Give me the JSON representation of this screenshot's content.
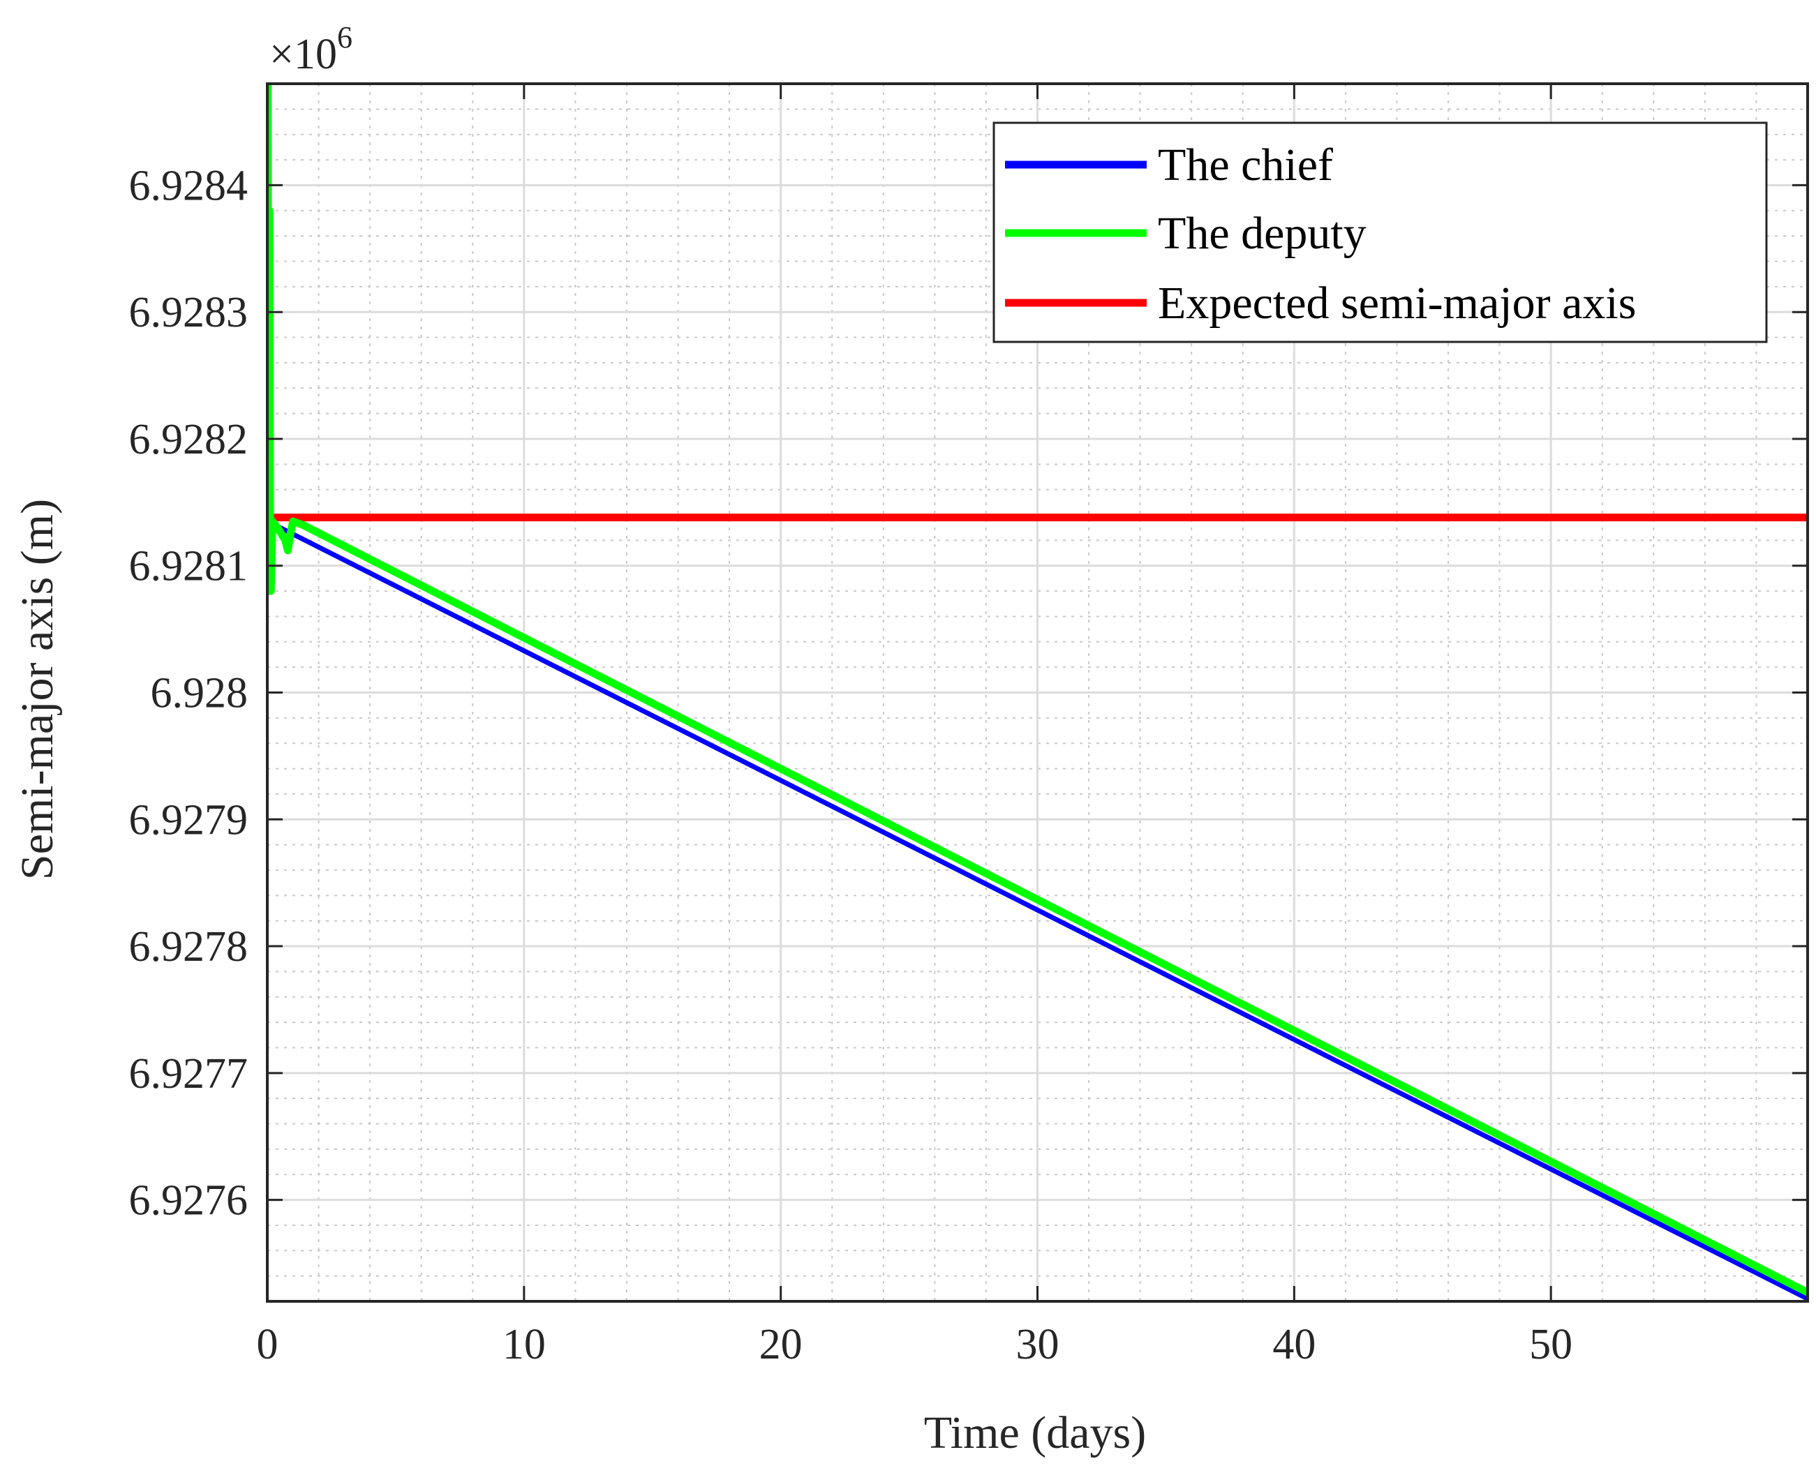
{
  "chart_data": {
    "type": "line",
    "xlabel": "Time (days)",
    "ylabel": "Semi-major axis (m)",
    "y_exponent_base": "×10",
    "y_exponent_power": "6",
    "xlim": [
      0,
      60
    ],
    "ylim": [
      6.92752,
      6.92848
    ],
    "xticks": [
      0,
      10,
      20,
      30,
      40,
      50
    ],
    "xtick_labels": [
      "0",
      "10",
      "20",
      "30",
      "40",
      "50"
    ],
    "yticks": [
      6.9276,
      6.9277,
      6.9278,
      6.9279,
      6.928,
      6.9281,
      6.9282,
      6.9283,
      6.9284
    ],
    "ytick_labels": [
      "6.9276",
      "6.9277",
      "6.9278",
      "6.9279",
      "6.928",
      "6.9281",
      "6.9282",
      "6.9283",
      "6.9284"
    ],
    "x_minor_step": 2,
    "y_minor_step": 2e-05,
    "grid": "major and minor",
    "legend_position": "top-right",
    "series": [
      {
        "name": "The chief",
        "color": "#0000ff",
        "x": [
          0,
          0.5,
          60
        ],
        "y": [
          6.928137,
          6.92813,
          6.927522
        ]
      },
      {
        "name": "The deputy",
        "color": "#00ff00",
        "x": [
          0,
          0.02,
          0.05,
          0.08,
          0.11,
          0.14,
          0.2,
          0.4,
          0.7,
          0.8,
          0.9,
          1.0,
          1.4,
          60
        ],
        "y": [
          6.928138,
          6.92848,
          6.92808,
          6.92838,
          6.92814,
          6.92808,
          6.928135,
          6.92813,
          6.92812,
          6.928112,
          6.928125,
          6.928135,
          6.928132,
          6.927527
        ]
      },
      {
        "name": "Expected semi-major axis",
        "color": "#ff0000",
        "x": [
          0,
          60
        ],
        "y": [
          6.928138,
          6.928138
        ]
      }
    ]
  }
}
